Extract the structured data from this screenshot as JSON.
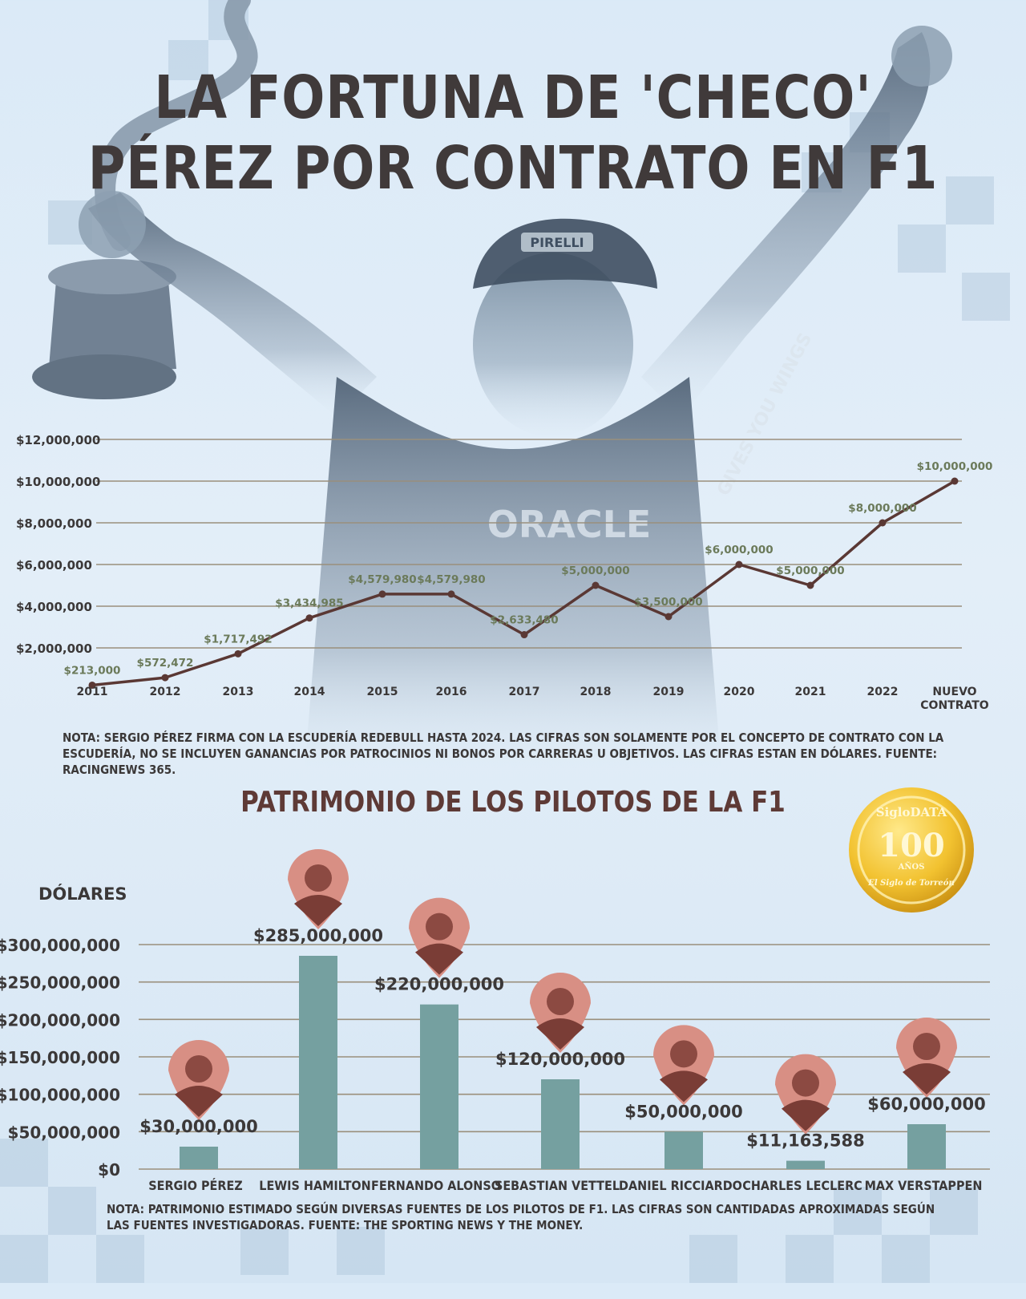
{
  "title": "LA FORTUNA DE 'CHECO' PÉREZ POR CONTRATO EN F1",
  "chart_data": [
    {
      "type": "line",
      "categories": [
        "2011",
        "2012",
        "2013",
        "2014",
        "2015",
        "2016",
        "2017",
        "2018",
        "2019",
        "2020",
        "2021",
        "2022",
        "NUEVO CONTRATO"
      ],
      "values": [
        213000,
        572472,
        1717492,
        3434985,
        4579980,
        4579980,
        2633480,
        5000000,
        3500000,
        6000000,
        5000000,
        8000000,
        10000000
      ],
      "value_labels": [
        "$213,000",
        "$572,472",
        "$1,717,492",
        "$3,434,985",
        "$4,579,980",
        "$4,579,980",
        "$2,633,480",
        "$5,000,000",
        "$3,500,000",
        "$6,000,000",
        "$5,000,000",
        "$8,000,000",
        "$10,000,000"
      ],
      "y_ticks": [
        2000000,
        4000000,
        6000000,
        8000000,
        10000000,
        12000000
      ],
      "y_tick_labels": [
        "$2,000,000",
        "$4,000,000",
        "$6,000,000",
        "$8,000,000",
        "$10,000,000",
        "$12,000,000"
      ],
      "ylim": [
        0,
        12000000
      ],
      "grid": true,
      "line_color": "#5a3834",
      "label_color": "#6b7a5a"
    },
    {
      "type": "bar",
      "title": "PATRIMONIO DE LOS PILOTOS DE LA F1",
      "ylabel": "DÓLARES",
      "categories": [
        "SERGIO PÉREZ",
        "LEWIS HAMILTON",
        "FERNANDO ALONSO",
        "SEBASTIAN VETTEL",
        "DANIEL RICCIARDO",
        "CHARLES LECLERC",
        "MAX VERSTAPPEN"
      ],
      "values": [
        30000000,
        285000000,
        220000000,
        120000000,
        50000000,
        11163588,
        60000000
      ],
      "value_labels": [
        "$30,000,000",
        "$285,000,000",
        "$220,000,000",
        "$120,000,000",
        "$50,000,000",
        "$11,163,588",
        "$60,000,000"
      ],
      "y_ticks": [
        0,
        50000000,
        100000000,
        150000000,
        200000000,
        250000000,
        300000000
      ],
      "y_tick_labels": [
        "$0",
        "$50,000,000",
        "$100,000,000",
        "$150,000,000",
        "$200,000,000",
        "$250,000,000",
        "$300,000,000"
      ],
      "ylim": [
        0,
        300000000
      ],
      "grid": true,
      "bar_color": "#75a0a0"
    }
  ],
  "note1": "NOTA: SERGIO PÉREZ FIRMA CON LA ESCUDERÍA REDEBULL HASTA 2024. LAS CIFRAS SON SOLAMENTE POR EL CONCEPTO DE CONTRATO CON LA ESCUDERÍA, NO SE INCLUYEN GANANCIAS POR PATROCINIOS NI BONOS POR CARRERAS U OBJETIVOS. LAS CIFRAS ESTAN EN DÓLARES. FUENTE: RACINGNEWS 365.",
  "note2": "NOTA: PATRIMONIO ESTIMADO SEGÚN DIVERSAS FUENTES DE LOS PILOTOS DE F1. LAS CIFRAS SON CANTIDADAS APROXIMADAS SEGÚN LAS FUENTES INVESTIGADORAS. FUENTE: THE SPORTING NEWS Y THE MONEY.",
  "seal": {
    "brand": "SigloDATA",
    "number": "100",
    "sub": "AÑOS",
    "name": "El Siglo de Torreón"
  },
  "photo_text": {
    "cap": "PIRELLI",
    "shirt": "ORACLE",
    "sleeve": "GIVES YOU WINGS"
  }
}
